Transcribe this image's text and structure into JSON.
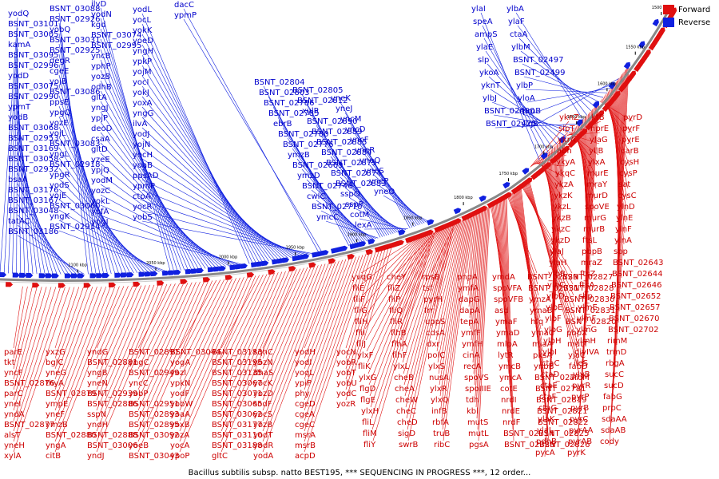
{
  "legend": {
    "forward_label": "Forward",
    "reverse_label": "Reverse",
    "forward_color": "#e01010",
    "reverse_color": "#1020e0"
  },
  "caption": "Bacillus subtilis subsp. natto BEST195, *** SEQUENCING IN PROGRESS ***, 12 order...",
  "colors": {
    "backbone": "#888888",
    "forward": "#e01010",
    "reverse": "#1020e0",
    "label_forward": "#cc0000",
    "label_reverse": "#0000cc"
  },
  "scale_ticks": [
    "1500 kbp",
    "1550 kbp",
    "1600 kbp",
    "1650 kbp",
    "1700 kbp",
    "1750 kbp",
    "1800 kbp",
    "1850 kbp",
    "1900 kbp",
    "1950 kbp",
    "2000 kbp",
    "2050 kbp",
    "2100 kbp"
  ],
  "genes_reverse_inner": [
    "yodQ",
    "BSNT_03101",
    "BSNT_03005",
    "kamA",
    "BSNT_03095",
    "BSNT_02996",
    "yodD",
    "BSNT_03075",
    "BSNT_02990",
    "ypmT",
    "yodB",
    "BSNT_03068",
    "BSNT_02953",
    "BSNT_03169",
    "BSNT_03058",
    "BSNT_02932",
    "bsaA",
    "BSNT_03176",
    "BSNT_03167",
    "BSNT_03048",
    "tatAC",
    "BSNT_03186",
    "BSNT_03088",
    "BSNT_02926",
    "yobQ",
    "BSNT_03031",
    "BSNT_02925",
    "degR",
    "cgeE",
    "yojB",
    "BSNT_03086",
    "ppsE",
    "ypgQ",
    "yozE",
    "yojL",
    "BSNT_03083",
    "yngL",
    "BSNT_02918",
    "ypgR",
    "yodS",
    "yojE",
    "BSNT_03060",
    "yngK",
    "BSNT_02914",
    "ilvD",
    "yodN",
    "kgd",
    "BSNT_03074",
    "BSNT_02995",
    "yncB",
    "yphP",
    "yozB",
    "odhB",
    "gltA",
    "yngJ",
    "ypjP",
    "deoD",
    "csaA",
    "gltD",
    "yzeE",
    "ypjQ",
    "yodM",
    "yozC",
    "yokL",
    "yofA",
    "yngI",
    "dfrA",
    "yodL",
    "yocL",
    "yokK",
    "yoeD",
    "yngH",
    "ypkP",
    "yojM",
    "yocI",
    "yokJ",
    "yoxA",
    "yngG",
    "ilvA",
    "yodJ",
    "yojN",
    "yocH",
    "yoaB",
    "ppsAD",
    "ypmP",
    "ctpA",
    "yocR",
    "yobS",
    "yoxD",
    "dacC",
    "ypmP"
  ],
  "genes_reverse_outer": [
    "BSNT_02804",
    "BSNT_02803",
    "BSNT_02786",
    "BSNT_02785",
    "ebrB",
    "BSNT_02780",
    "BSNT_02776",
    "ymzB",
    "BSNT_02669",
    "ymzD",
    "BSNT_02746",
    "cwlC",
    "BSNT_02770",
    "ymcC",
    "BSNT_02805",
    "BSNT_02812",
    "xylR",
    "BSNT_02890",
    "BSNT_02889",
    "BSNT_02885",
    "BSNT_02884",
    "BSNT_02875",
    "BSNT_02874",
    "BSNT_02883",
    "sspO",
    "sspP",
    "cotM",
    "lexA",
    "yneK",
    "yneJ",
    "yncM",
    "yncD",
    "yncF",
    "yneR",
    "yneQ",
    "yneS",
    "yneP",
    "yneO"
  ],
  "genes_reverse_top": [
    "ylaI",
    "speA",
    "ampS",
    "ylaE",
    "slp",
    "ykoA",
    "yknT",
    "ylbJ",
    "BSNT_02490",
    "BSNT_02425",
    "ylbA",
    "ylaF",
    "ctaA",
    "ylbM",
    "BSNT_02497",
    "BSNT_02499",
    "ylbP",
    "yloA",
    "rpmB",
    "ylqB"
  ],
  "genes_forward_right": [
    "yknZ",
    "sipT",
    "ykrA",
    "abh",
    "ykyA",
    "ykqC",
    "ykzA",
    "ykzK",
    "ykzL",
    "ykzB",
    "ykzC",
    "ykzD",
    "ylaJ",
    "ylaH",
    "ylbB",
    "ylbC",
    "ylbD",
    "ylbE",
    "ylbF",
    "ylbG",
    "ylbH",
    "ylbI",
    "ctaC",
    "ctaD",
    "ctaE",
    "ctaF",
    "ctaG",
    "ylaK",
    "ylaL",
    "pdhB",
    "pycA",
    "ktB",
    "nprE",
    "ylaG",
    "yllB",
    "ylxA",
    "murE",
    "mraY",
    "murD",
    "spoVE",
    "murG",
    "murB",
    "ftsL",
    "pbpB",
    "mraZ",
    "ftsZ",
    "ftsA",
    "sbp",
    "ylmE",
    "ylmF",
    "ylmG",
    "ylmH",
    "divIVA",
    "ileS",
    "ylyB",
    "pyrR",
    "pyrP",
    "pyrB",
    "pyrC",
    "pyrAA",
    "pyrAB",
    "pyrK",
    "pyrD",
    "pyrF",
    "pyrE",
    "carB",
    "cysH",
    "cysP",
    "sat",
    "cysC",
    "ylnD",
    "ylnE",
    "ylnF",
    "ylnA",
    "sbp",
    "BSNT_02643",
    "BSNT_02644",
    "BSNT_02646",
    "BSNT_02652",
    "BSNT_02657",
    "BSNT_02670",
    "BSNT_02702",
    "rimM",
    "trmD",
    "rbgA",
    "sucC",
    "sucD",
    "fabG",
    "prpC",
    "sdaAA",
    "sdaAB",
    "cody"
  ],
  "genes_forward_lower": [
    "yvqG",
    "fliE",
    "fliF",
    "fliG",
    "fliH",
    "fliI",
    "fliJ",
    "ylxF",
    "fliK",
    "ylxG",
    "flgD",
    "flgE",
    "ylxH",
    "fliL",
    "fliM",
    "fliY",
    "cheY",
    "fliZ",
    "fliP",
    "fliQ",
    "fliR",
    "flhB",
    "flhA",
    "flhF",
    "ylxL",
    "cheB",
    "cheA",
    "cheW",
    "cheC",
    "cheD",
    "sigD",
    "swrB",
    "rpsB",
    "tsf",
    "pyrH",
    "frr",
    "uppS",
    "cdsA",
    "dxr",
    "polC",
    "ylxS",
    "nusA",
    "ylxR",
    "ylxQ",
    "infB",
    "rbfA",
    "truB",
    "ribC",
    "pnpA",
    "ymfA",
    "dapG",
    "dapA",
    "tepA",
    "ymfF",
    "ymfH",
    "cinA",
    "recA",
    "spoVS",
    "spoIIIE",
    "tdh",
    "kbl",
    "mutS",
    "mutL",
    "pgsA",
    "ymdA",
    "spoVFA",
    "spoVFB",
    "asd",
    "ymaF",
    "ymaD",
    "mlpA",
    "lytR",
    "ymcB",
    "ymcA",
    "cotE",
    "nrdI",
    "nrdE",
    "nrdF",
    "BSNT_02714",
    "BSNT_02726",
    "BSNT_02729",
    "BSNT_02731",
    "ymzA",
    "ymaB",
    "hfq",
    "ymaC",
    "miaA",
    "pksA",
    "ynbB",
    "BSNT_02777",
    "BSNT_02781",
    "BSNT_02819",
    "BSNT_02821",
    "BSNT_02822",
    "BSNT_02825",
    "BSNT_02826",
    "BSNT_02827",
    "BSNT_02828",
    "BSNT_02830",
    "BSNT_02831",
    "BSNT_02820",
    "pbpX",
    "mutT",
    "yjaC",
    "fabD",
    "aroM"
  ],
  "genes_forward_left": [
    "parE",
    "tkt",
    "yncF",
    "BSNT_02876",
    "parC",
    "yneI",
    "yndA",
    "BSNT_02877",
    "alsT",
    "yneH",
    "xylA",
    "yxzG",
    "bglC",
    "yneG",
    "thyA",
    "BSNT_02879",
    "ympE",
    "yneF",
    "ymzB",
    "BSNT_02880",
    "yngA",
    "citB",
    "yndG",
    "BSNT_02881",
    "yngB",
    "yneN",
    "BSNT_02939",
    "BSNT_02886",
    "sspN",
    "yndH",
    "BSNT_02888",
    "BSNT_03006",
    "yndJ",
    "BSNT_02891",
    "yngC",
    "BSNT_02949",
    "yncC",
    "yobP",
    "BSNT_02951",
    "BSNT_02893",
    "BSNT_02895",
    "BSNT_03092",
    "yoeB",
    "BSNT_03043",
    "BSNT_03044",
    "yogA",
    "yozI",
    "ypkN",
    "yodF",
    "yobW",
    "yoaA",
    "yoxB",
    "yozA",
    "yocA",
    "ypoP",
    "BSNT_03183",
    "BSNT_03195",
    "BSNT_03135",
    "BSNT_03067",
    "BSNT_03071",
    "BSNT_03065",
    "BSNT_03062",
    "BSNT_03177",
    "BSNT_03110",
    "BSNT_03188",
    "gltC",
    "sqhC",
    "yozN",
    "dhaS",
    "yocK",
    "yozD",
    "sodF",
    "yocS",
    "yozB",
    "yodT",
    "yodR",
    "yodA",
    "yodH",
    "yodI",
    "yoqL",
    "ypiP",
    "phy",
    "cgeD",
    "cgeA",
    "cgeC",
    "msrA",
    "msrB",
    "acpD",
    "yocN",
    "yobR",
    "yobT",
    "yobU",
    "yodC",
    "yozR"
  ]
}
